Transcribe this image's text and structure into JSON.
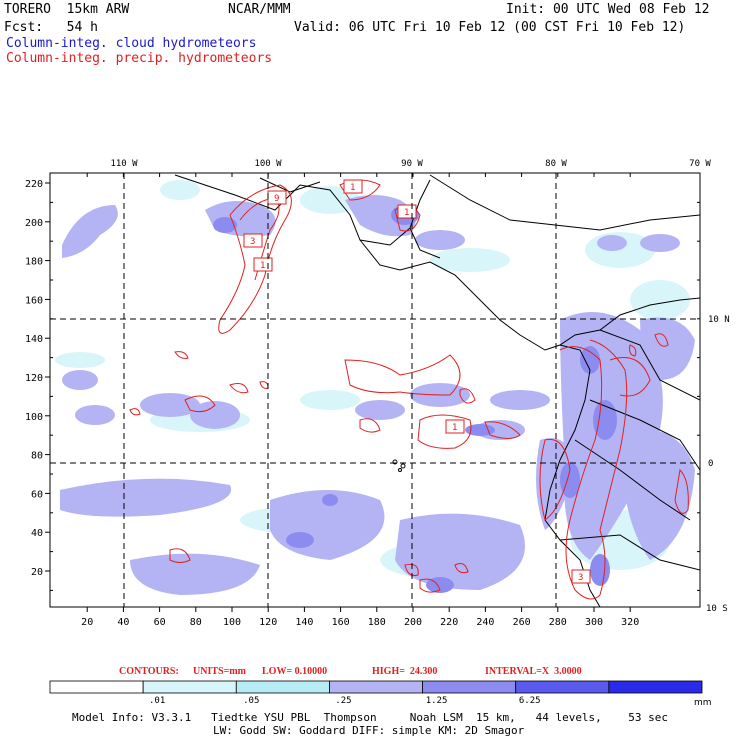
{
  "header": {
    "model": "TORERO  15km ARW",
    "center": "NCAR/MMM",
    "init": "Init: 00 UTC Wed 08 Feb 12",
    "fcst": "Fcst:   54 h",
    "valid": "Valid: 06 UTC Fri 10 Feb 12 (00 CST Fri 10 Feb 12)",
    "field1": "Column-integ. cloud hydrometeors",
    "field2": "Column-integ. precip. hydrometeors"
  },
  "map": {
    "lon_labels": [
      "110 W",
      "100 W",
      "90 W",
      "80 W",
      "70 W"
    ],
    "lat_labels": [
      "10 N",
      "0",
      "10 S"
    ],
    "y_ticks": [
      "20",
      "40",
      "60",
      "80",
      "100",
      "120",
      "140",
      "160",
      "180",
      "200",
      "220"
    ],
    "x_ticks": [
      "20",
      "40",
      "60",
      "80",
      "100",
      "120",
      "140",
      "160",
      "180",
      "200",
      "220",
      "240",
      "260",
      "280",
      "300",
      "320"
    ],
    "contour_labels": [
      "1",
      "9",
      "1",
      "3",
      "1",
      "3",
      "1"
    ],
    "colors": {
      "cloud_light": "#d8f5fa",
      "cloud_mid": "#b4b4f5",
      "cloud_strong": "#8c8cf0",
      "precip": "#e02020",
      "coast": "#000000"
    }
  },
  "contours_info": {
    "prefix": "CONTOURS:",
    "units": "UNITS=mm",
    "low": "LOW= 0.10000",
    "high": "HIGH=  24.300",
    "interval": "INTERVAL=X  3.0000"
  },
  "colorbar": {
    "labels": [
      ".01",
      ".05",
      ".25",
      "1.25",
      "6.25"
    ],
    "unit": "mm",
    "colors": [
      "#ffffff",
      "#d8f5fa",
      "#b8ecf5",
      "#b4b4f5",
      "#8c8cf0",
      "#5a5af0",
      "#2a2aea"
    ]
  },
  "footer": {
    "line1": "Model Info: V3.3.1   Tiedtke YSU PBL  Thompson     Noah LSM  15 km,   44 levels,    53 sec",
    "line2": "LW: Godd SW: Goddard DIFF: simple KM: 2D Smagor"
  }
}
